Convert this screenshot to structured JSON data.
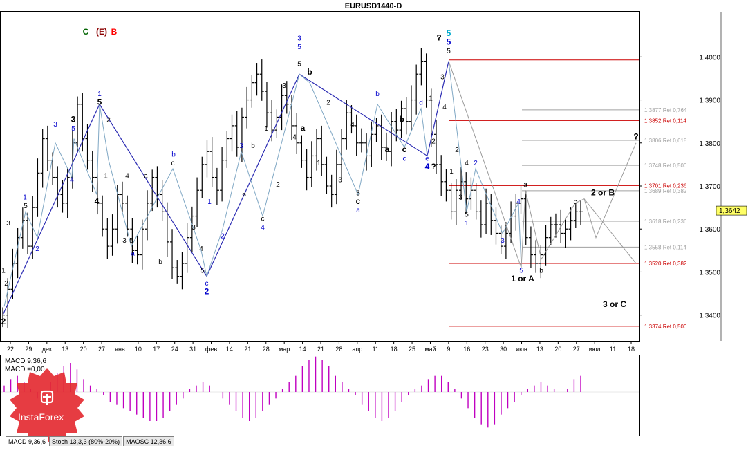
{
  "window": {
    "title": "EURUSD1440-D"
  },
  "legend_cells": [
    {
      "text": "C",
      "color": "#006400"
    },
    {
      "text": "(E)",
      "color": "#8b0000"
    },
    {
      "text": "B",
      "color": "#ff0000"
    }
  ],
  "chart_data": {
    "type": "candlestick",
    "symbol": "EURUSD",
    "timeframe": "D",
    "ylim": [
      1.334,
      1.4105
    ],
    "y_ticks": [
      "1,4000",
      "1,3900",
      "1,3800",
      "1,3700",
      "1,3600",
      "1,3500",
      "1,3400"
    ],
    "y_tick_values": [
      1.4,
      1.39,
      1.38,
      1.37,
      1.36,
      1.35,
      1.34
    ],
    "x_ticks": [
      "22",
      "29",
      "дек",
      "13",
      "20",
      "27",
      "янв",
      "10",
      "17",
      "24",
      "31",
      "фев",
      "14",
      "21",
      "28",
      "мар",
      "14",
      "21",
      "28",
      "апр",
      "11",
      "18",
      "25",
      "май",
      "9",
      "16",
      "23",
      "30",
      "июн",
      "13",
      "20",
      "27",
      "июл",
      "11",
      "18"
    ],
    "current_price": {
      "label": "1,3642",
      "value": 1.3642
    },
    "price_path": [
      1.34,
      1.346,
      1.352,
      1.358,
      1.362,
      1.356,
      1.365,
      1.373,
      1.381,
      1.376,
      1.372,
      1.368,
      1.366,
      1.372,
      1.38,
      1.389,
      1.381,
      1.376,
      1.372,
      1.366,
      1.36,
      1.356,
      1.36,
      1.368,
      1.366,
      1.36,
      1.355,
      1.354,
      1.36,
      1.366,
      1.372,
      1.368,
      1.364,
      1.357,
      1.351,
      1.349,
      1.352,
      1.358,
      1.363,
      1.369,
      1.375,
      1.378,
      1.372,
      1.369,
      1.376,
      1.381,
      1.384,
      1.379,
      1.386,
      1.39,
      1.394,
      1.396,
      1.392,
      1.387,
      1.383,
      1.386,
      1.391,
      1.389,
      1.384,
      1.38,
      1.376,
      1.372,
      1.377,
      1.381,
      1.375,
      1.37,
      1.368,
      1.375,
      1.381,
      1.387,
      1.384,
      1.38,
      1.38,
      1.377,
      1.382,
      1.384,
      1.379,
      1.378,
      1.385,
      1.383,
      1.388,
      1.385,
      1.39,
      1.396,
      1.399,
      1.39,
      1.382,
      1.375,
      1.371,
      1.369,
      1.364,
      1.369,
      1.371,
      1.367,
      1.369,
      1.364,
      1.361,
      1.366,
      1.362,
      1.359,
      1.356,
      1.359,
      1.363,
      1.366,
      1.367,
      1.358,
      1.354,
      1.352,
      1.354,
      1.358,
      1.361,
      1.361,
      1.359,
      1.36,
      1.362,
      1.364,
      1.364
    ],
    "path_start_x": 4,
    "path_end_x": 840,
    "fib_levels": [
      {
        "label": "1,3877 Ret 0,764",
        "value": 1.3877,
        "color": "#a0a0a0"
      },
      {
        "label": "1,3852 Ret 0,114",
        "value": 1.3852,
        "color": "#cc0000"
      },
      {
        "label": "1,3806 Ret 0,618",
        "value": 1.3806,
        "color": "#a0a0a0"
      },
      {
        "label": "1,3748 Ret 0,500",
        "value": 1.3748,
        "color": "#a0a0a0"
      },
      {
        "label": "1,3701 Ret 0,236",
        "value": 1.3701,
        "color": "#cc0000"
      },
      {
        "label": "1,3689 Ret 0,382",
        "value": 1.3689,
        "color": "#a0a0a0"
      },
      {
        "label": "1,3618 Ret 0,236",
        "value": 1.3618,
        "color": "#a0a0a0"
      },
      {
        "label": "1,3558 Ret 0,114",
        "value": 1.3558,
        "color": "#a0a0a0"
      },
      {
        "label": "1,3520 Ret 0,382",
        "value": 1.352,
        "color": "#cc0000"
      },
      {
        "label": "1,3374 Ret 0,500",
        "value": 1.3374,
        "color": "#cc0000"
      }
    ],
    "top_line_value": 1.3993,
    "wave_labels": [
      {
        "text": "2",
        "x": 5,
        "y": 1.3385,
        "color": "#000000",
        "bold": true
      },
      {
        "text": "1",
        "x": 5,
        "y": 1.3505,
        "color": "#000000"
      },
      {
        "text": "2",
        "x": 9,
        "y": 1.3475,
        "color": "#000000"
      },
      {
        "text": "3",
        "x": 12,
        "y": 1.3615,
        "color": "#000000"
      },
      {
        "text": "1",
        "x": 36,
        "y": 1.3675,
        "color": "#0000cc"
      },
      {
        "text": "5",
        "x": 37,
        "y": 1.3655,
        "color": "#000000"
      },
      {
        "text": "2",
        "x": 54,
        "y": 1.3555,
        "color": "#0000cc"
      },
      {
        "text": "3",
        "x": 80,
        "y": 1.3845,
        "color": "#0000cc"
      },
      {
        "text": "4",
        "x": 104,
        "y": 1.3715,
        "color": "#0000cc"
      },
      {
        "text": "3",
        "x": 106,
        "y": 1.3855,
        "color": "#000000",
        "bold": true
      },
      {
        "text": "5",
        "x": 106,
        "y": 1.3835,
        "color": "#0000cc"
      },
      {
        "text": "4",
        "x": 140,
        "y": 1.3665,
        "color": "#000000",
        "bold": true
      },
      {
        "text": "1",
        "x": 144,
        "y": 1.3915,
        "color": "#0000cc"
      },
      {
        "text": "5",
        "x": 144,
        "y": 1.3895,
        "color": "#000000",
        "bold": true
      },
      {
        "text": "2",
        "x": 157,
        "y": 1.3855,
        "color": "#000000"
      },
      {
        "text": "1",
        "x": 153,
        "y": 1.3725,
        "color": "#000000"
      },
      {
        "text": "a",
        "x": 211,
        "y": 1.3725,
        "color": "#000000"
      },
      {
        "text": "3",
        "x": 180,
        "y": 1.3575,
        "color": "#000000"
      },
      {
        "text": "4",
        "x": 184,
        "y": 1.3725,
        "color": "#000000"
      },
      {
        "text": "5",
        "x": 190,
        "y": 1.3575,
        "color": "#000000"
      },
      {
        "text": "a",
        "x": 192,
        "y": 1.3545,
        "color": "#0000cc"
      },
      {
        "text": "b",
        "x": 232,
        "y": 1.3525,
        "color": "#000000"
      },
      {
        "text": "b",
        "x": 251,
        "y": 1.3775,
        "color": "#0000cc"
      },
      {
        "text": "c",
        "x": 250,
        "y": 1.3755,
        "color": "#000000"
      },
      {
        "text": "3",
        "x": 280,
        "y": 1.3605,
        "color": "#000000"
      },
      {
        "text": "4",
        "x": 291,
        "y": 1.3555,
        "color": "#000000"
      },
      {
        "text": "5",
        "x": 293,
        "y": 1.3505,
        "color": "#000000"
      },
      {
        "text": "c",
        "x": 299,
        "y": 1.3475,
        "color": "#0000cc"
      },
      {
        "text": "2",
        "x": 299,
        "y": 1.3455,
        "color": "#0000cc",
        "bold": true
      },
      {
        "text": "1",
        "x": 303,
        "y": 1.3665,
        "color": "#0000cc"
      },
      {
        "text": "2",
        "x": 322,
        "y": 1.3585,
        "color": "#0000cc"
      },
      {
        "text": "3",
        "x": 349,
        "y": 1.3795,
        "color": "#0000cc"
      },
      {
        "text": "b",
        "x": 366,
        "y": 1.3795,
        "color": "#000000"
      },
      {
        "text": "a",
        "x": 353,
        "y": 1.3685,
        "color": "#000000"
      },
      {
        "text": "2",
        "x": 402,
        "y": 1.3705,
        "color": "#000000"
      },
      {
        "text": "c",
        "x": 380,
        "y": 1.3625,
        "color": "#000000"
      },
      {
        "text": "4",
        "x": 380,
        "y": 1.3605,
        "color": "#0000cc"
      },
      {
        "text": "1",
        "x": 385,
        "y": 1.3835,
        "color": "#000000"
      },
      {
        "text": "3",
        "x": 411,
        "y": 1.3935,
        "color": "#000000"
      },
      {
        "text": "4",
        "x": 426,
        "y": 1.3815,
        "color": "#000000"
      },
      {
        "text": "3",
        "x": 433,
        "y": 1.4045,
        "color": "#0000cc"
      },
      {
        "text": "5",
        "x": 433,
        "y": 1.4025,
        "color": "#0000cc"
      },
      {
        "text": "5",
        "x": 433,
        "y": 1.3985,
        "color": "#000000"
      },
      {
        "text": "b",
        "x": 448,
        "y": 1.3965,
        "color": "#000000",
        "bold": true
      },
      {
        "text": "a",
        "x": 438,
        "y": 1.3835,
        "color": "#000000",
        "bold": true
      },
      {
        "text": "2",
        "x": 475,
        "y": 1.3895,
        "color": "#000000"
      },
      {
        "text": "1",
        "x": 461,
        "y": 1.3755,
        "color": "#000000"
      },
      {
        "text": "4",
        "x": 510,
        "y": 1.3845,
        "color": "#000000"
      },
      {
        "text": "3",
        "x": 492,
        "y": 1.3715,
        "color": "#000000"
      },
      {
        "text": "5",
        "x": 518,
        "y": 1.3685,
        "color": "#000000"
      },
      {
        "text": "c",
        "x": 518,
        "y": 1.3665,
        "color": "#000000",
        "bold": true
      },
      {
        "text": "a",
        "x": 518,
        "y": 1.3645,
        "color": "#0000cc"
      },
      {
        "text": "b",
        "x": 546,
        "y": 1.3915,
        "color": "#0000cc"
      },
      {
        "text": "a",
        "x": 560,
        "y": 1.3785,
        "color": "#000000",
        "bold": true
      },
      {
        "text": "b",
        "x": 581,
        "y": 1.3855,
        "color": "#000000",
        "bold": true
      },
      {
        "text": "c",
        "x": 585,
        "y": 1.3785,
        "color": "#000000",
        "bold": true
      },
      {
        "text": "c",
        "x": 585,
        "y": 1.3765,
        "color": "#0000cc"
      },
      {
        "text": "d",
        "x": 609,
        "y": 1.3895,
        "color": "#0000cc"
      },
      {
        "text": "e",
        "x": 618,
        "y": 1.3765,
        "color": "#0000cc"
      },
      {
        "text": "4",
        "x": 618,
        "y": 1.3745,
        "color": "#0000cc",
        "bold": true
      },
      {
        "text": "?",
        "x": 627,
        "y": 1.3745,
        "color": "#000000",
        "bold": true
      },
      {
        "text": "1",
        "x": 623,
        "y": 1.3905,
        "color": "#000000"
      },
      {
        "text": "2",
        "x": 627,
        "y": 1.3805,
        "color": "#000000"
      },
      {
        "text": "3",
        "x": 640,
        "y": 1.3955,
        "color": "#000000"
      },
      {
        "text": "4",
        "x": 643,
        "y": 1.3885,
        "color": "#000000"
      },
      {
        "text": "?",
        "x": 635,
        "y": 1.4045,
        "color": "#000000",
        "bold": true
      },
      {
        "text": "5",
        "x": 649,
        "y": 1.4055,
        "color": "#00aacc",
        "big": true
      },
      {
        "text": "5",
        "x": 649,
        "y": 1.4035,
        "color": "#0000cc",
        "big": true
      },
      {
        "text": "5",
        "x": 649,
        "y": 1.4015,
        "color": "#000000"
      },
      {
        "text": "1",
        "x": 653,
        "y": 1.3735,
        "color": "#000000"
      },
      {
        "text": "2",
        "x": 661,
        "y": 1.3785,
        "color": "#000000"
      },
      {
        "text": "3",
        "x": 666,
        "y": 1.3675,
        "color": "#000000"
      },
      {
        "text": "4",
        "x": 675,
        "y": 1.3755,
        "color": "#000000"
      },
      {
        "text": "2",
        "x": 688,
        "y": 1.3755,
        "color": "#0000cc"
      },
      {
        "text": "5",
        "x": 675,
        "y": 1.3635,
        "color": "#000000"
      },
      {
        "text": "1",
        "x": 675,
        "y": 1.3615,
        "color": "#0000cc"
      },
      {
        "text": "3",
        "x": 727,
        "y": 1.3575,
        "color": "#0000cc"
      },
      {
        "text": "4",
        "x": 750,
        "y": 1.3665,
        "color": "#0000cc"
      },
      {
        "text": "a",
        "x": 760,
        "y": 1.3705,
        "color": "#000000"
      },
      {
        "text": "5",
        "x": 754,
        "y": 1.3505,
        "color": "#0000cc"
      },
      {
        "text": "b",
        "x": 783,
        "y": 1.3505,
        "color": "#000000"
      },
      {
        "text": "c",
        "x": 832,
        "y": 1.3665,
        "color": "#000000"
      },
      {
        "text": "1 or A",
        "x": 756,
        "y": 1.3485,
        "color": "#000000",
        "bold": true
      },
      {
        "text": "2 or B",
        "x": 872,
        "y": 1.3685,
        "color": "#000000",
        "bold": true
      },
      {
        "text": "3 or C",
        "x": 889,
        "y": 1.3425,
        "color": "#000000",
        "bold": true
      },
      {
        "text": "?",
        "x": 920,
        "y": 1.3815,
        "color": "#000000",
        "bold": true
      }
    ],
    "wave_lines_dark": [
      [
        [
          4,
          1.34
        ],
        [
          144,
          1.389
        ],
        [
          299,
          1.349
        ],
        [
          433,
          1.396
        ],
        [
          618,
          1.377
        ],
        [
          649,
          1.399
        ]
      ]
    ],
    "wave_lines_light": [
      [
        [
          6,
          1.342
        ],
        [
          37,
          1.364
        ],
        [
          54,
          1.358
        ],
        [
          80,
          1.38
        ],
        [
          104,
          1.372
        ],
        [
          107,
          1.381
        ],
        [
          140,
          1.368
        ],
        [
          144,
          1.389
        ],
        [
          157,
          1.376
        ],
        [
          190,
          1.356
        ],
        [
          250,
          1.374
        ],
        [
          291,
          1.355
        ],
        [
          299,
          1.349
        ]
      ],
      [
        [
          299,
          1.349
        ],
        [
          322,
          1.36
        ],
        [
          349,
          1.378
        ],
        [
          380,
          1.363
        ],
        [
          433,
          1.396
        ],
        [
          448,
          1.394
        ],
        [
          518,
          1.368
        ],
        [
          546,
          1.389
        ],
        [
          585,
          1.379
        ],
        [
          609,
          1.388
        ],
        [
          618,
          1.377
        ]
      ],
      [
        [
          649,
          1.399
        ],
        [
          675,
          1.364
        ],
        [
          688,
          1.374
        ],
        [
          727,
          1.359
        ],
        [
          750,
          1.366
        ],
        [
          754,
          1.351
        ]
      ]
    ],
    "projection_lines": [
      [
        [
          649,
          1.399
        ],
        [
          754,
          1.351
        ]
      ],
      [
        [
          754,
          1.351
        ],
        [
          760,
          1.369
        ],
        [
          783,
          1.353
        ],
        [
          832,
          1.366
        ],
        [
          845,
          1.367
        ],
        [
          862,
          1.358
        ],
        [
          920,
          1.38
        ]
      ],
      [
        [
          845,
          1.367
        ],
        [
          920,
          1.352
        ]
      ]
    ],
    "macd": {
      "labels": [
        "MACD 9,36,6",
        "MACD =0,00"
      ],
      "values": [
        0.2,
        0.4,
        0.5,
        0.3,
        0.1,
        -0.2,
        -0.1,
        0.3,
        0.6,
        0.8,
        0.9,
        0.7,
        0.4,
        0.2,
        0.1,
        -0.1,
        -0.3,
        -0.4,
        -0.5,
        -0.6,
        -0.7,
        -0.8,
        -0.9,
        -0.9,
        -0.8,
        -0.6,
        -0.4,
        -0.2,
        0.1,
        0.2,
        0.3,
        0.2,
        0.0,
        -0.2,
        -0.4,
        -0.6,
        -0.8,
        -0.9,
        -0.8,
        -0.6,
        -0.4,
        -0.2,
        0.1,
        0.3,
        0.5,
        0.8,
        1.0,
        1.1,
        1.0,
        0.8,
        0.5,
        0.3,
        0.1,
        -0.1,
        -0.4,
        -0.6,
        -0.8,
        -0.9,
        -0.8,
        -0.6,
        -0.3,
        -0.1,
        0.1,
        0.2,
        0.4,
        0.5,
        0.5,
        0.3,
        0.1,
        -0.2,
        -0.5,
        -0.8,
        -1.0,
        -1.1,
        -1.0,
        -0.7,
        -0.5,
        -0.3,
        -0.1,
        0.1,
        0.2,
        0.3,
        0.2,
        0.1,
        0.0,
        0.1,
        0.4,
        0.5
      ],
      "ylim": [
        -1.2,
        1.2
      ]
    }
  },
  "tabs": [
    "MACD 9,36,6",
    "Stoch 13,3,3 (80%-20%)",
    "MAOSC 12,36,6"
  ],
  "logo": {
    "text": "InstaForex"
  }
}
